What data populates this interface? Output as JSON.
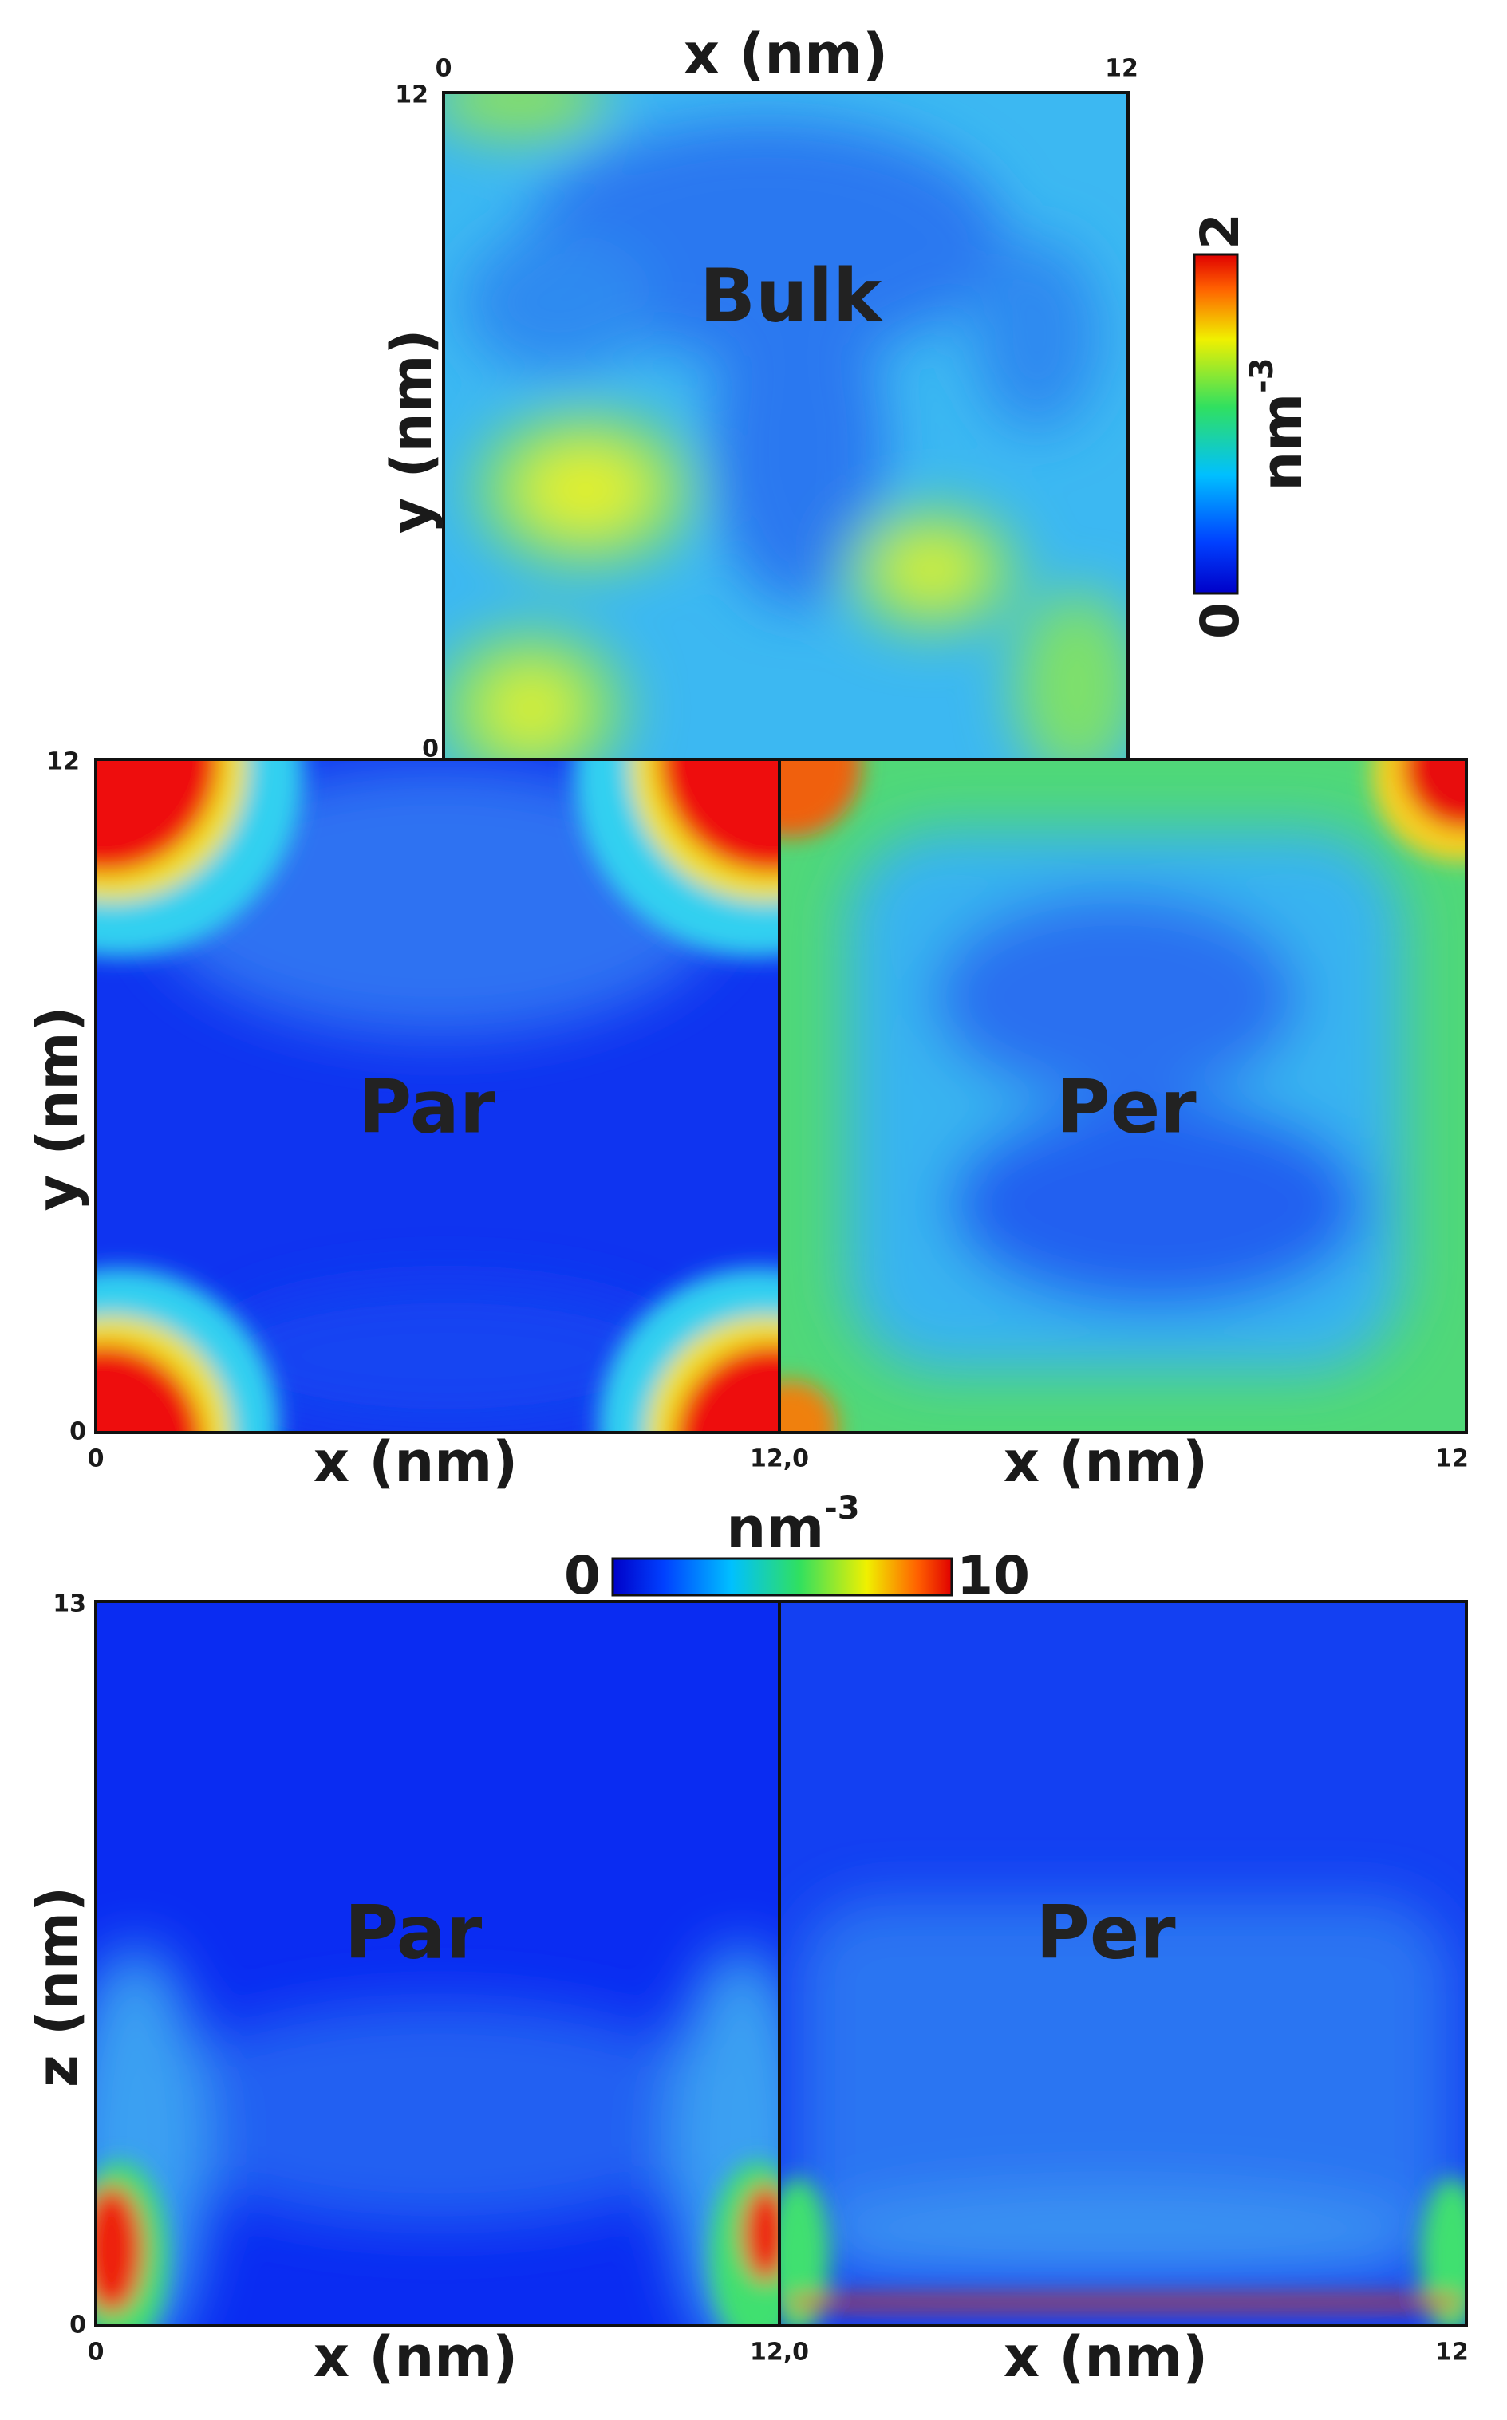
{
  "top_colorbar": {
    "min": "0",
    "max": "2",
    "unit": "nm",
    "exponent": "-3"
  },
  "bottom_colorbar": {
    "min": "0",
    "max": "10",
    "unit": "nm",
    "exponent": "-3"
  },
  "bulk": {
    "label": "Bulk",
    "x_label": "x (nm)",
    "y_label": "y (nm)",
    "x_ticks": [
      "0",
      "12"
    ],
    "y_ticks": [
      "12",
      "0"
    ]
  },
  "xy_panels": {
    "y_label": "y (nm)",
    "y_ticks": [
      "12",
      "0"
    ],
    "x_ticks": [
      "0",
      "12,0",
      "12"
    ],
    "x_labels": [
      "x (nm)",
      "x (nm)"
    ],
    "panel_labels": [
      "Par",
      "Per"
    ]
  },
  "xz_panels": {
    "z_label": "z (nm)",
    "z_ticks": [
      "13",
      "0"
    ],
    "x_ticks": [
      "0",
      "12,0",
      "12"
    ],
    "x_labels": [
      "x (nm)",
      "x (nm)"
    ],
    "panel_labels": [
      "Par",
      "Per"
    ]
  }
}
